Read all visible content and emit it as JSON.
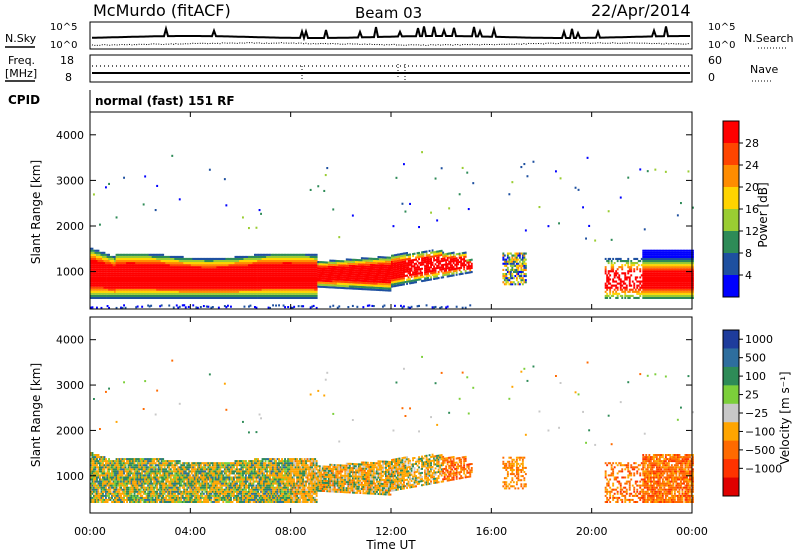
{
  "header": {
    "station": "McMurdo (fitACF)",
    "beam": "Beam 03",
    "date": "22/Apr/2014",
    "mode": "normal (fast) 151 RF"
  },
  "side_labels": {
    "nsky": "N.Sky",
    "freq": "Freq.",
    "freq_unit": "[MHz]",
    "cpid": "CPID",
    "nsearch": "N.Search",
    "nave": "Nave"
  },
  "noise_panel": {
    "left_ticks": [
      "10^5",
      "10^0"
    ],
    "right_ticks": [
      "10^5",
      "10^0"
    ]
  },
  "freq_panel": {
    "left_ticks": [
      "18",
      "8"
    ],
    "right_ticks": [
      "60",
      "0"
    ]
  },
  "chart_data": [
    {
      "type": "heatmap",
      "title": "",
      "xlabel": "",
      "ylabel": "Slant Range [km]",
      "ylim": [
        180,
        4500
      ],
      "yticks": [
        "1000",
        "2000",
        "3000",
        "4000"
      ],
      "xlim": [
        0,
        24
      ],
      "colorbar": {
        "label": "Power [dB]",
        "ticks": [
          "28",
          "24",
          "20",
          "16",
          "12",
          "8",
          "4"
        ],
        "colors": [
          "#ff0000",
          "#ff4500",
          "#ff8c00",
          "#ffd400",
          "#9acd32",
          "#2e8b57",
          "#1e50a0",
          "#0000ff"
        ]
      },
      "grid": false
    },
    {
      "type": "heatmap",
      "title": "",
      "xlabel": "Time UT",
      "ylabel": "Slant Range [km]",
      "ylim": [
        180,
        4500
      ],
      "yticks": [
        "1000",
        "2000",
        "3000",
        "4000"
      ],
      "xlim": [
        0,
        24
      ],
      "xticks": [
        "00:00",
        "04:00",
        "08:00",
        "12:00",
        "16:00",
        "20:00",
        "00:00"
      ],
      "colorbar": {
        "label": "Velocity [m s⁻¹]",
        "ticks": [
          "1000",
          "500",
          "100",
          "25",
          "−25",
          "−100",
          "−500",
          "−1000"
        ],
        "colors": [
          "#1e3c9c",
          "#2e6e9e",
          "#2e8b57",
          "#7ccf3a",
          "#c8c8c8",
          "#ffa500",
          "#ff6a00",
          "#ff3300",
          "#e00000"
        ]
      },
      "grid": false
    }
  ]
}
